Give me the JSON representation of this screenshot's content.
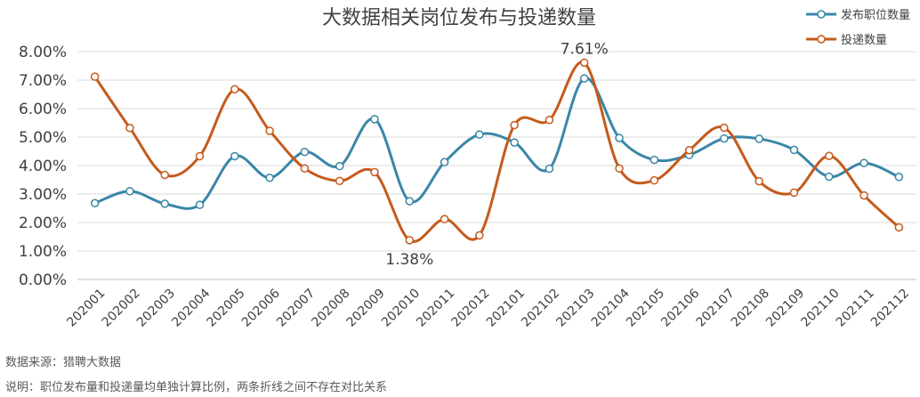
{
  "chart_data": {
    "type": "line",
    "title": "大数据相关岗位发布与投递数量",
    "categories": [
      "202001",
      "202002",
      "202003",
      "202004",
      "202005",
      "202006",
      "202007",
      "202008",
      "202009",
      "202010",
      "202011",
      "202012",
      "202101",
      "202102",
      "202103",
      "202104",
      "202105",
      "202106",
      "202107",
      "202108",
      "202109",
      "202110",
      "202111",
      "202112"
    ],
    "series": [
      {
        "name": "发布职位数量",
        "color": "#3a86a8",
        "values": [
          2.68,
          3.1,
          2.66,
          2.62,
          4.33,
          3.57,
          4.48,
          3.98,
          5.63,
          2.75,
          4.12,
          5.09,
          4.81,
          3.89,
          7.06,
          4.97,
          4.2,
          4.37,
          4.95,
          4.94,
          4.55,
          3.61,
          4.09,
          3.6
        ]
      },
      {
        "name": "投递数量",
        "color": "#c55a1b",
        "values": [
          7.12,
          5.32,
          3.67,
          4.33,
          6.68,
          5.22,
          3.9,
          3.46,
          3.77,
          1.38,
          2.12,
          1.55,
          5.42,
          5.6,
          7.61,
          3.9,
          3.48,
          4.54,
          5.33,
          3.45,
          3.05,
          4.34,
          2.95,
          1.83
        ]
      }
    ],
    "ylim": [
      0,
      8
    ],
    "yticks": [
      "0.00%",
      "1.00%",
      "2.00%",
      "3.00%",
      "4.00%",
      "5.00%",
      "6.00%",
      "7.00%",
      "8.00%"
    ],
    "grid": true,
    "legend_position": "top-right",
    "annotations": [
      {
        "series": 1,
        "index": 14,
        "text": "7.61%"
      },
      {
        "series": 1,
        "index": 9,
        "text": "1.38%"
      }
    ]
  },
  "notes": {
    "source": "数据来源：猎聘大数据",
    "explanation": "说明：职位发布量和投递量均单独计算比例，两条折线之间不存在对比关系"
  }
}
